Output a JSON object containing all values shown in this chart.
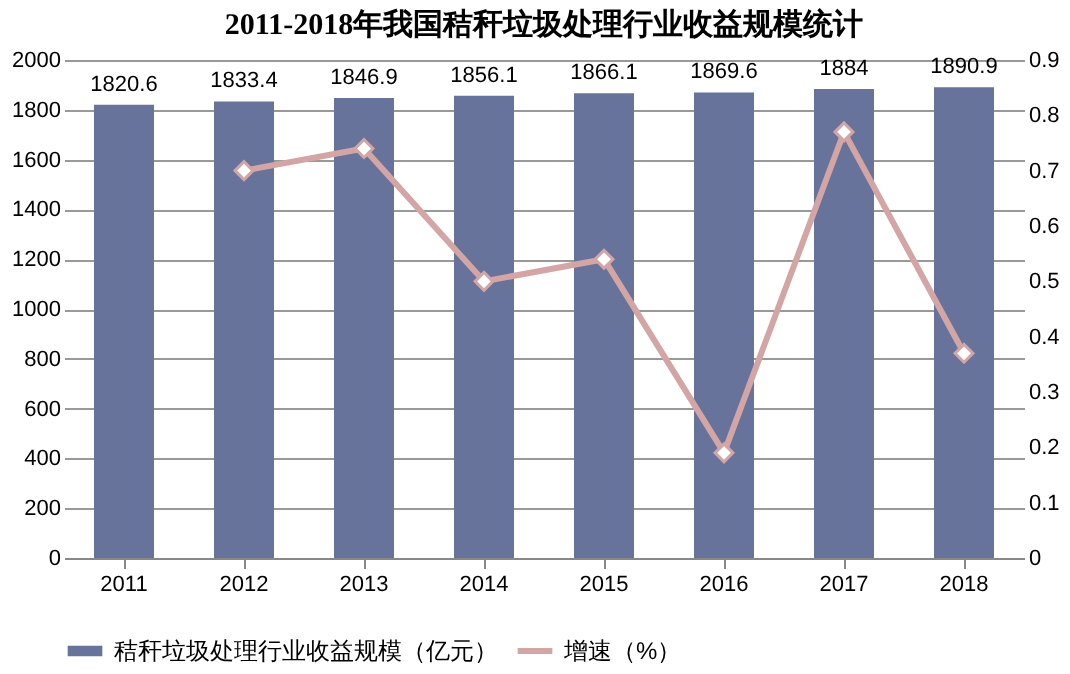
{
  "chart_data": {
    "type": "bar",
    "title": "2011-2018年我国秸秆垃圾处理行业收益规模统计",
    "categories": [
      "2011",
      "2012",
      "2013",
      "2014",
      "2015",
      "2016",
      "2017",
      "2018"
    ],
    "series": [
      {
        "name": "秸秆垃圾处理行业收益规模（亿元）",
        "color": "#67739a",
        "values": [
          1820.6,
          1833.4,
          1846.9,
          1856.1,
          1866.1,
          1869.6,
          1884,
          1890.9
        ],
        "value_labels": [
          "1820.6",
          "1833.4",
          "1846.9",
          "1856.1",
          "1866.1",
          "1869.6",
          "1884",
          "1890.9"
        ]
      },
      {
        "name": "增速（%）",
        "type": "line",
        "axis": "y2",
        "color": "#d4a5a5",
        "marker": "diamond",
        "values": [
          null,
          0.7,
          0.74,
          0.5,
          0.54,
          0.19,
          0.77,
          0.37
        ]
      }
    ],
    "ylim": [
      0,
      2000
    ],
    "yticks": [
      0,
      200,
      400,
      600,
      800,
      1000,
      1200,
      1400,
      1600,
      1800,
      2000
    ],
    "y2lim": [
      0,
      0.9
    ],
    "y2ticks": [
      0,
      0.1,
      0.2,
      0.3,
      0.4,
      0.5,
      0.6,
      0.7,
      0.8,
      0.9
    ],
    "grid": "y",
    "legend": "bottom"
  }
}
